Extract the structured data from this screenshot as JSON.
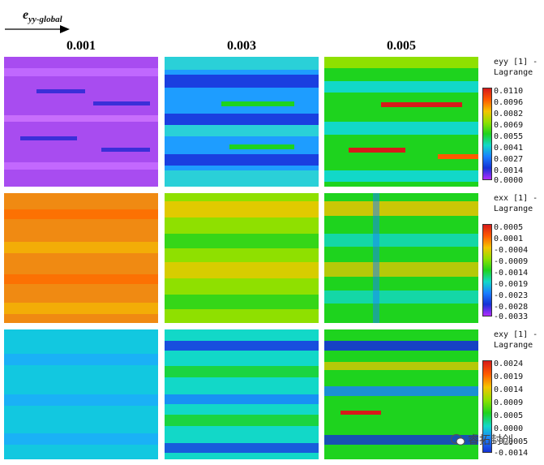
{
  "axis_label": {
    "symbol": "e",
    "subscript": "yy-global"
  },
  "columns": [
    "0.001",
    "0.003",
    "0.005"
  ],
  "rows": [
    {
      "key": "eyy",
      "legend_title_line1": "eyy [1] -",
      "legend_title_line2": "Lagrange",
      "ticks": [
        "0.0110",
        "0.0096",
        "0.0082",
        "0.0069",
        "0.0055",
        "0.0041",
        "0.0027",
        "0.0014",
        "0.0000"
      ],
      "colors": [
        "#d71a1a",
        "#ff5a00",
        "#f5c400",
        "#8fe000",
        "#1ed31e",
        "#12d8c8",
        "#1a7fff",
        "#1532d6",
        "#b12bff"
      ]
    },
    {
      "key": "exx",
      "legend_title_line1": "exx [1] -",
      "legend_title_line2": "Lagrange",
      "ticks": [
        "0.0005",
        "0.0001",
        "-0.0004",
        "-0.0009",
        "-0.0014",
        "-0.0019",
        "-0.0023",
        "-0.0028",
        "-0.0033"
      ],
      "colors": [
        "#d71a1a",
        "#ff5a00",
        "#f5c400",
        "#8fe000",
        "#1ed31e",
        "#12d8c8",
        "#1a7fff",
        "#1532d6",
        "#b12bff"
      ]
    },
    {
      "key": "exy",
      "legend_title_line1": "exy [1] -",
      "legend_title_line2": "Lagrange",
      "ticks": [
        "0.0024",
        "0.0019",
        "0.0014",
        "0.0009",
        "0.0005",
        "0.0000",
        "-0.0005",
        "-0.0014"
      ],
      "colors": [
        "#d71a1a",
        "#ff5a00",
        "#f5c400",
        "#8fe000",
        "#1ed31e",
        "#12d8c8",
        "#1a7fff",
        "#1532d6"
      ]
    }
  ],
  "watermark": {
    "icon": "wechat-icon",
    "text": "睿拓封创"
  }
}
